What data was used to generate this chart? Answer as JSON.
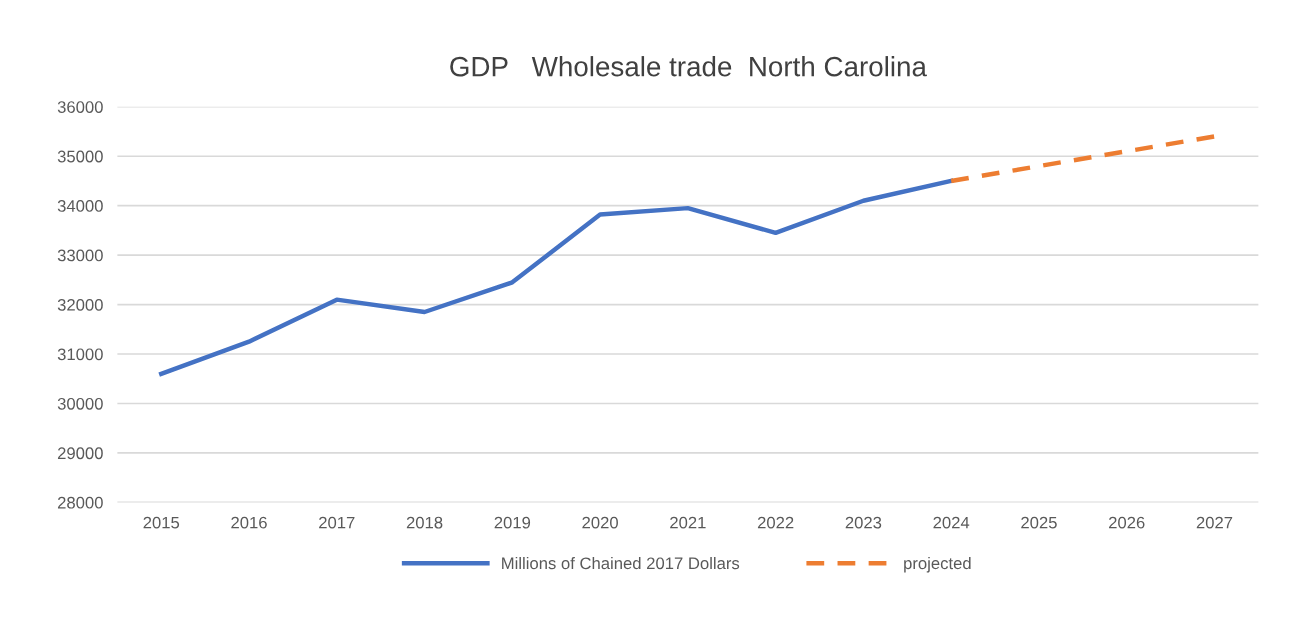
{
  "chart_data": {
    "type": "line",
    "title": "GDP   Wholesale trade  North Carolina",
    "categories": [
      "2015",
      "2016",
      "2017",
      "2018",
      "2019",
      "2020",
      "2021",
      "2022",
      "2023",
      "2024",
      "2025",
      "2026",
      "2027"
    ],
    "series": [
      {
        "name": "Millions of Chained 2017 Dollars",
        "color": "#4472c4",
        "line_style": "solid",
        "values": [
          30600,
          31250,
          32100,
          31850,
          32450,
          33820,
          33950,
          33450,
          34100,
          34500,
          null,
          null,
          null
        ]
      },
      {
        "name": "projected",
        "color": "#ed7d31",
        "line_style": "dashed",
        "values": [
          null,
          null,
          null,
          null,
          null,
          null,
          null,
          null,
          null,
          34500,
          34800,
          35100,
          35400
        ]
      }
    ],
    "ylim": [
      28000,
      36000
    ],
    "yticks": [
      28000,
      29000,
      30000,
      31000,
      32000,
      33000,
      34000,
      35000,
      36000
    ],
    "grid": "y",
    "legend": "bottom",
    "marker": "none"
  }
}
